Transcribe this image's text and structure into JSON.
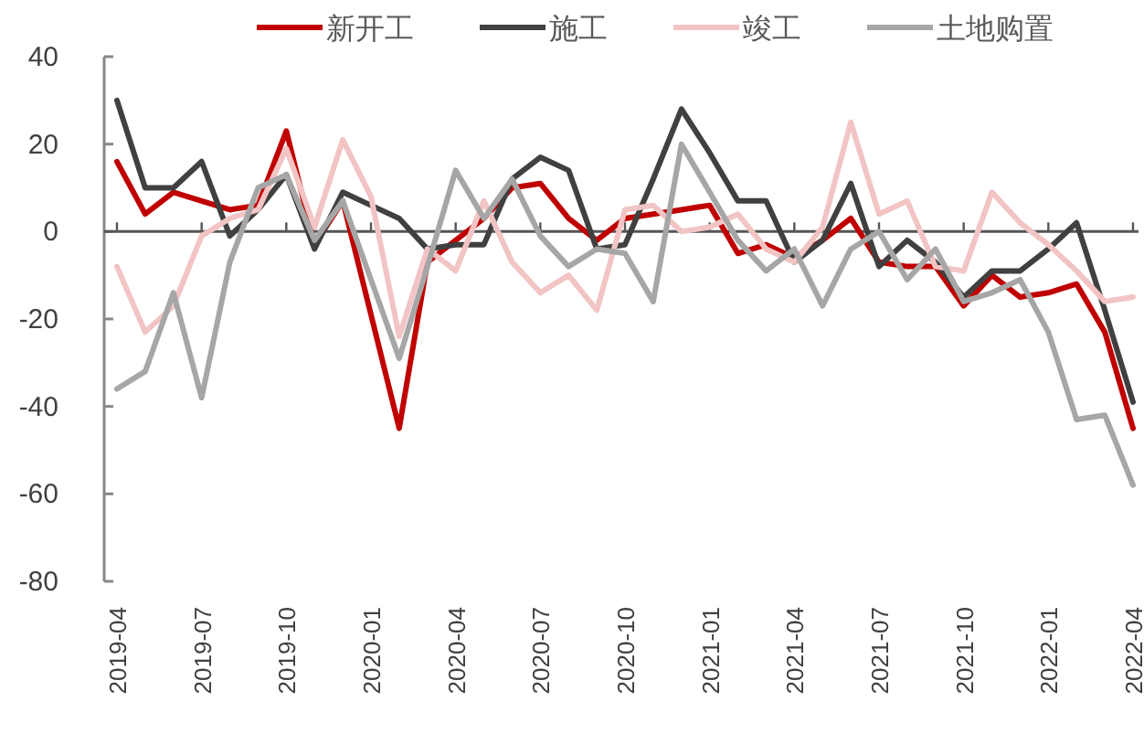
{
  "chart_data": {
    "type": "line",
    "categories": [
      "2019-04",
      null,
      null,
      "2019-07",
      null,
      null,
      "2019-10",
      null,
      null,
      "2020-01",
      null,
      null,
      "2020-04",
      null,
      null,
      "2020-07",
      null,
      null,
      "2020-10",
      null,
      null,
      "2021-01",
      null,
      null,
      "2021-04",
      null,
      null,
      "2021-07",
      null,
      null,
      "2021-10",
      null,
      null,
      "2022-01",
      null,
      null,
      "2022-04"
    ],
    "series": [
      {
        "name": "新开工",
        "color": "#c00000",
        "values": [
          16,
          4,
          9,
          7,
          5,
          6,
          23,
          -3,
          7,
          -19,
          -45,
          -7,
          -2,
          3,
          10,
          11,
          3,
          -2,
          3,
          4,
          5,
          6,
          -5,
          -3,
          -6,
          -2,
          3,
          -7,
          -8,
          -8,
          -17,
          -10,
          -15,
          -14,
          -12,
          -23,
          -45
        ]
      },
      {
        "name": "施工",
        "color": "#404040",
        "values": [
          30,
          10,
          10,
          16,
          -1,
          5,
          13,
          -4,
          9,
          6,
          3,
          -4,
          -3,
          -3,
          12,
          17,
          14,
          -4,
          -3,
          12,
          28,
          18,
          7,
          7,
          -7,
          -2,
          11,
          -8,
          -2,
          -7,
          -15,
          -9,
          -9,
          -4,
          2,
          -18,
          -39
        ]
      },
      {
        "name": "竣工",
        "color": "#f2c4c4",
        "values": [
          -8,
          -23,
          -17,
          -1,
          3,
          5,
          19,
          1,
          21,
          8,
          -24,
          -4,
          -9,
          7,
          -7,
          -14,
          -10,
          -18,
          5,
          6,
          0,
          1,
          4,
          -4,
          -7,
          1,
          25,
          4,
          7,
          -8,
          -9,
          9,
          2,
          -3,
          -9,
          -16,
          -15
        ]
      },
      {
        "name": "土地购置",
        "color": "#a6a6a6",
        "values": [
          -36,
          -32,
          -14,
          -38,
          -7,
          10,
          13,
          -2,
          7,
          -11,
          -29,
          -8,
          14,
          3,
          12,
          -1,
          -8,
          -4,
          -5,
          -16,
          20,
          9,
          -2,
          -9,
          -4,
          -17,
          -4,
          0,
          -11,
          -4,
          -16,
          -14,
          -11,
          -23,
          -43,
          -42,
          -58
        ]
      }
    ],
    "ylim": [
      -80,
      40
    ],
    "yticks": [
      -80,
      -60,
      -40,
      -20,
      0,
      20,
      40
    ],
    "legend": "top"
  }
}
